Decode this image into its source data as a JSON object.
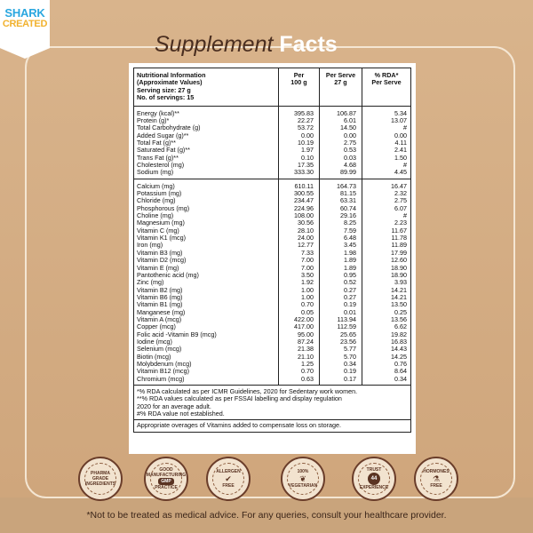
{
  "brand": {
    "logo_line1": "SHARK",
    "logo_line2": "CREATED"
  },
  "title": {
    "part1": "Supplement",
    "part2": "Facts"
  },
  "colors": {
    "background": "#d9b48c",
    "title_dark": "#4a2e20",
    "brand_blue": "#2aa7df",
    "brand_yellow": "#f1b22f",
    "badge_brown": "#6a3d2a"
  },
  "table": {
    "header": {
      "info_lines": [
        "Nutritional Information",
        "(Approximate Values)",
        "Serving size: 27 g",
        "No. of servings: 15"
      ],
      "col2_lines": [
        "Per",
        "100 g"
      ],
      "col3_lines": [
        "Per Serve",
        "27 g"
      ],
      "col4_lines": [
        "% RDA*",
        "Per Serve"
      ]
    },
    "groups": [
      [
        [
          "Energy (kcal)**",
          "395.83",
          "106.87",
          "5.34"
        ],
        [
          "Protein (g)*",
          "22.27",
          "6.01",
          "13.07"
        ],
        [
          "Total Carbohydrate (g)",
          "53.72",
          "14.50",
          "#"
        ],
        [
          "Added Sugar (g)**",
          "0.00",
          "0.00",
          "0.00"
        ],
        [
          "Total Fat (g)**",
          "10.19",
          "2.75",
          "4.11"
        ],
        [
          "Saturated Fat (g)**",
          "1.97",
          "0.53",
          "2.41"
        ],
        [
          "Trans Fat (g)**",
          "0.10",
          "0.03",
          "1.50"
        ],
        [
          "Cholesterol (mg)",
          "17.35",
          "4.68",
          "#"
        ],
        [
          "Sodium (mg)",
          "333.30",
          "89.99",
          "4.45"
        ]
      ],
      [
        [
          "Calcium (mg)",
          "610.11",
          "164.73",
          "16.47"
        ],
        [
          "Potassium (mg)",
          "300.55",
          "81.15",
          "2.32"
        ],
        [
          "Chloride (mg)",
          "234.47",
          "63.31",
          "2.75"
        ],
        [
          "Phosphorous (mg)",
          "224.96",
          "60.74",
          "6.07"
        ],
        [
          "Choline (mg)",
          "108.00",
          "29.16",
          "#"
        ],
        [
          "Magnesium (mg)",
          "30.56",
          "8.25",
          "2.23"
        ],
        [
          "Vitamin C (mg)",
          "28.10",
          "7.59",
          "11.67"
        ],
        [
          "Vitamin K1 (mcg)",
          "24.00",
          "6.48",
          "11.78"
        ],
        [
          "Iron (mg)",
          "12.77",
          "3.45",
          "11.89"
        ],
        [
          "Vitamin B3 (mg)",
          "7.33",
          "1.98",
          "17.99"
        ],
        [
          "Vitamin D2 (mcg)",
          "7.00",
          "1.89",
          "12.60"
        ],
        [
          "Vitamin E (mg)",
          "7.00",
          "1.89",
          "18.90"
        ],
        [
          "Pantothenic acid (mg)",
          "3.50",
          "0.95",
          "18.90"
        ],
        [
          "Zinc (mg)",
          "1.92",
          "0.52",
          "3.93"
        ],
        [
          "Vitamin B2 (mg)",
          "1.00",
          "0.27",
          "14.21"
        ],
        [
          "Vitamin B6 (mg)",
          "1.00",
          "0.27",
          "14.21"
        ],
        [
          "Vitamin B1 (mg)",
          "0.70",
          "0.19",
          "13.50"
        ],
        [
          "Manganese (mg)",
          "0.05",
          "0.01",
          "0.25"
        ],
        [
          "Vitamin A (mcg)",
          "422.00",
          "113.94",
          "13.56"
        ],
        [
          "Copper (mcg)",
          "417.00",
          "112.59",
          "6.62"
        ],
        [
          "Folic acid -Vitamin B9 (mcg)",
          "95.00",
          "25.65",
          "19.82"
        ],
        [
          "Iodine (mcg)",
          "87.24",
          "23.56",
          "16.83"
        ],
        [
          "Selenium (mcg)",
          "21.38",
          "5.77",
          "14.43"
        ],
        [
          "Biotin (mcg)",
          "21.10",
          "5.70",
          "14.25"
        ],
        [
          "Molybdenum (mcg)",
          "1.25",
          "0.34",
          "0.76"
        ],
        [
          "Vitamin B12 (mcg)",
          "0.70",
          "0.19",
          "8.64"
        ],
        [
          "Chromium (mcg)",
          "0.63",
          "0.17",
          "0.34"
        ]
      ]
    ],
    "footnotes": [
      "*% RDA calculated as per ICMR Guidelines, 2020 for Sedentary work women.",
      "**% RDA values calculated as per FSSAI labelling and display regulation",
      "2020 for an average adult.",
      "#% RDA value not established."
    ],
    "footnote_last": "Appropriate overages of Vitamins added to compensate loss on storage."
  },
  "badges": [
    {
      "icon": "capsule-icon",
      "top": "PHARMA GRADE",
      "mid": "",
      "pill": "",
      "bottom": "INGREDIENTS"
    },
    {
      "icon": "gmp-icon",
      "top": "GOOD MANUFACTURING",
      "mid": "",
      "pill": "GMP",
      "bottom": "PRACTICE"
    },
    {
      "icon": "shield-check-icon",
      "top": "ALLERGEN",
      "mid": "✔",
      "pill": "",
      "bottom": "FREE"
    },
    {
      "icon": "leaf-icon",
      "top": "100%",
      "mid": "❦",
      "pill": "",
      "bottom": "VEGETARIAN"
    },
    {
      "icon": "trust-44-icon",
      "top": "TRUST",
      "mid": "",
      "pill": "44",
      "bottom": "EXPERIENCE"
    },
    {
      "icon": "flask-icon",
      "top": "HORMONES",
      "mid": "⚗",
      "pill": "",
      "bottom": "FREE"
    }
  ],
  "disclaimer": "*Not to be treated as medical advice. For any queries, consult your healthcare provider."
}
